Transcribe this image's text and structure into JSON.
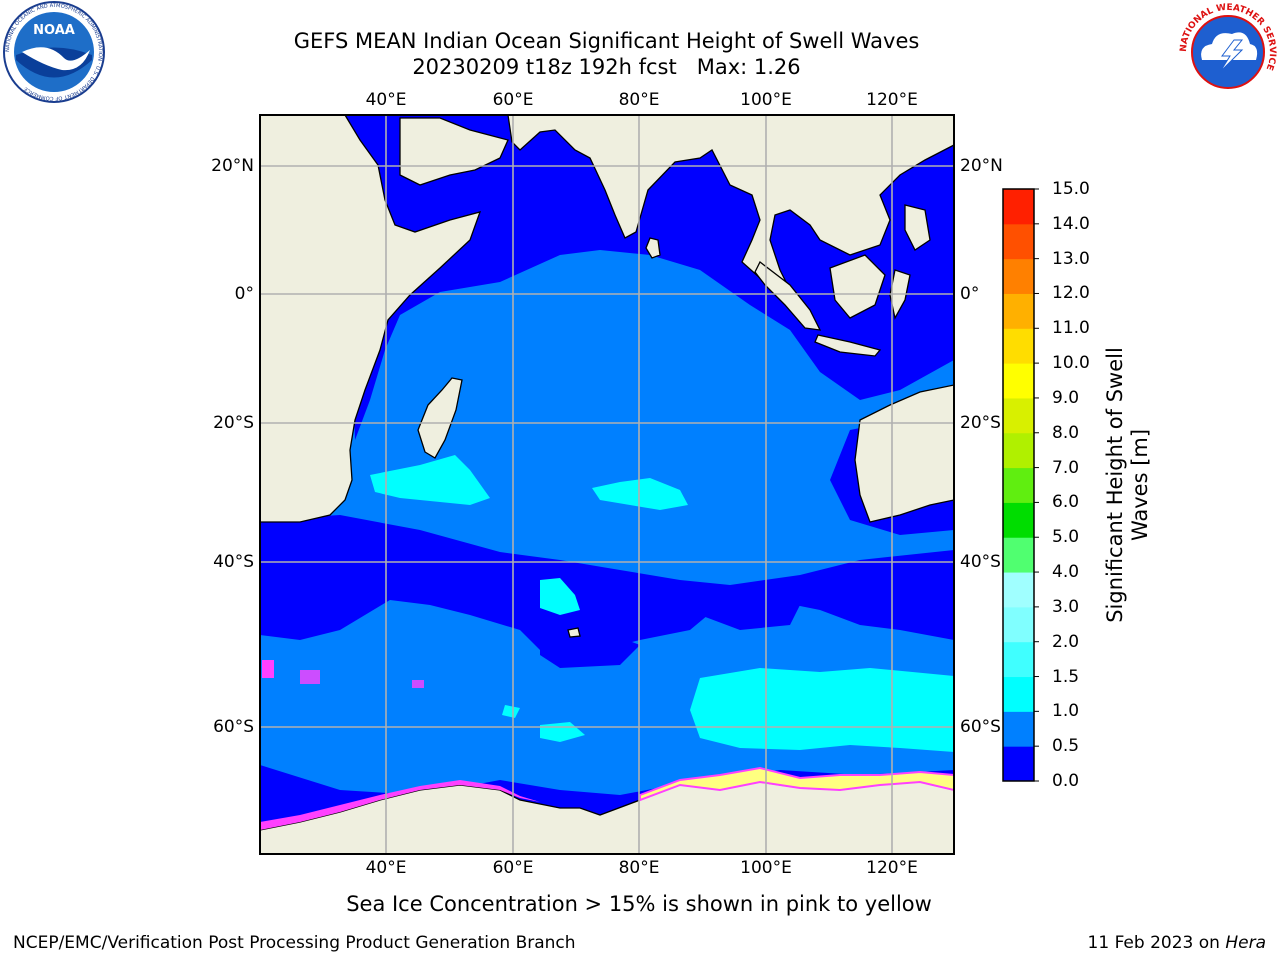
{
  "title": {
    "line1": "GEFS MEAN Indian Ocean Significant Height of Swell Waves",
    "line2": "20230209 t18z 192h fcst   Max: 1.26"
  },
  "map": {
    "lon_labels": [
      "40°E",
      "60°E",
      "80°E",
      "100°E",
      "120°E"
    ],
    "lat_labels": [
      "20°N",
      "0°",
      "20°S",
      "40°S",
      "60°S"
    ]
  },
  "colorbar": {
    "label_line1": "Significant Height of Swell",
    "label_line2": "Waves [m]",
    "ticks": [
      "0.0",
      "0.5",
      "1.0",
      "1.5",
      "2.0",
      "3.0",
      "4.0",
      "5.0",
      "6.0",
      "7.0",
      "8.0",
      "9.0",
      "10.0",
      "11.0",
      "12.0",
      "13.0",
      "14.0",
      "15.0"
    ],
    "colors": [
      "#0000ff",
      "#0080ff",
      "#00ffff",
      "#40ffff",
      "#80ffff",
      "#a0ffff",
      "#50ff70",
      "#00dd00",
      "#60ee10",
      "#b0f000",
      "#d8f000",
      "#ffff00",
      "#ffdd00",
      "#ffb000",
      "#ff8000",
      "#ff5000",
      "#ff2000",
      "#ff0000"
    ]
  },
  "caption": "Sea Ice Concentration > 15% is shown in pink to yellow",
  "footer": {
    "left": "NCEP/EMC/Verification Post Processing Product Generation Branch",
    "right_date": "11 Feb 2023 on ",
    "right_host": "Hera"
  },
  "logos": {
    "noaa_text": "NOAA",
    "noaa_ring": "NATIONAL OCEANIC AND ATMOSPHERIC ADMINISTRATION · U.S. DEPARTMENT OF COMMERCE",
    "nws_ring": "NATIONAL WEATHER SERVICE"
  },
  "colors": {
    "land": "#efefdf",
    "deep_blue": "#0000ff",
    "mid_blue": "#0080ff",
    "cyan": "#00ffff",
    "grid": "#b0b0b0",
    "ice_pink": "#ff40ff",
    "ice_yellow": "#ffff80"
  }
}
